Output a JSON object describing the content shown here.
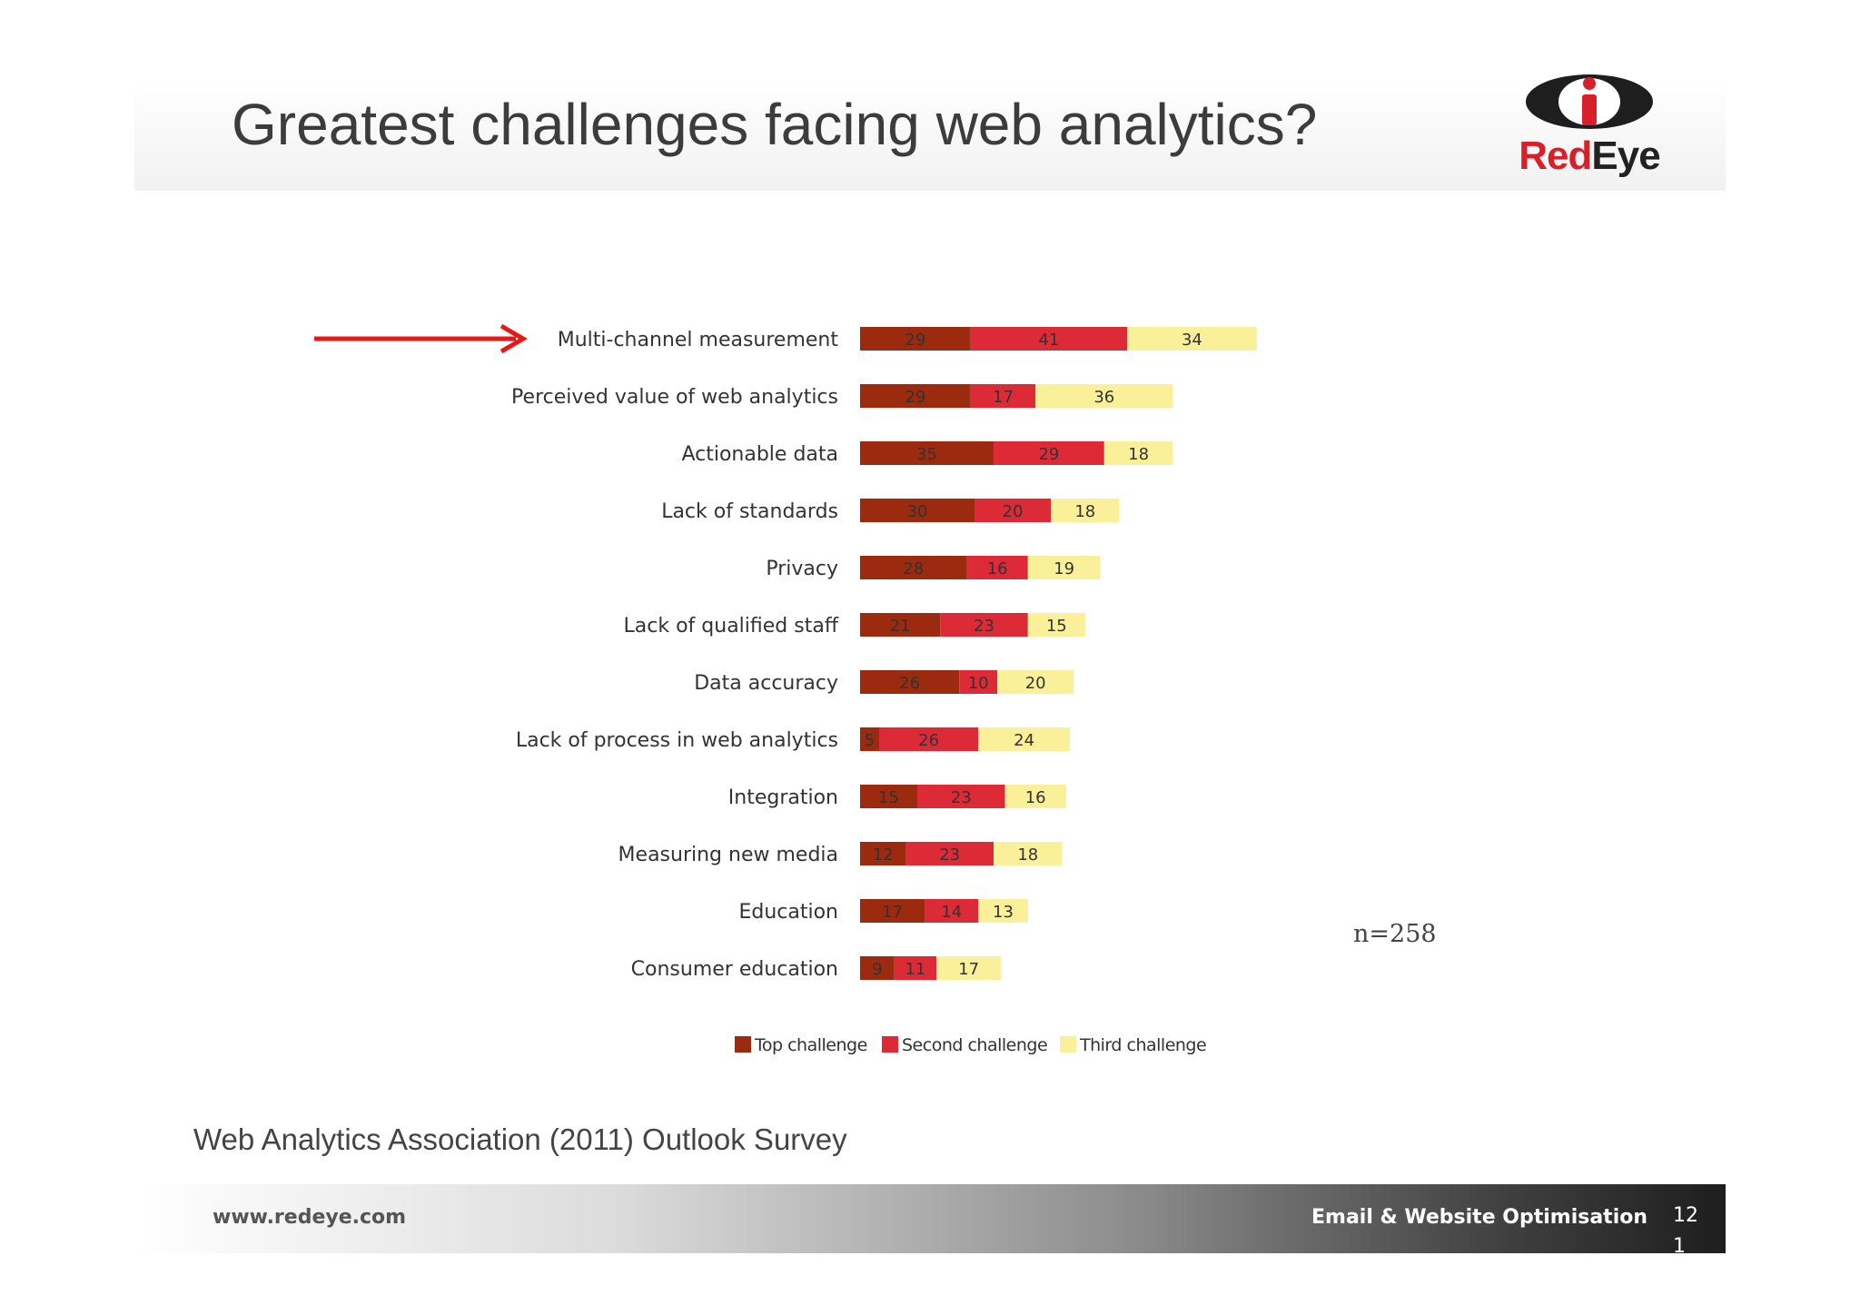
{
  "slide": {
    "title": "Greatest challenges facing web analytics?",
    "logo_text_red": "Red",
    "logo_text_dark": "Eye",
    "source": "Web Analytics Association (2011) Outlook Survey",
    "footer_url": "www.redeye.com",
    "footer_tagline": "Email & Website Optimisation",
    "page_number": "121",
    "sample_size": "n=258"
  },
  "colors": {
    "top": "#9b2a0e",
    "second": "#dc2a36",
    "third": "#fbf09a",
    "arrow": "#e81818",
    "logo_red": "#d8202a"
  },
  "chart_data": {
    "type": "bar",
    "orientation": "horizontal",
    "stacked": true,
    "highlighted_category": "Multi-channel measurement",
    "categories": [
      "Multi-channel measurement",
      "Perceived value of web analytics",
      "Actionable data",
      "Lack of standards",
      "Privacy",
      "Lack of qualified staff",
      "Data accuracy",
      "Lack of process in web analytics",
      "Integration",
      "Measuring new media",
      "Education",
      "Consumer education"
    ],
    "series": [
      {
        "name": "Top challenge",
        "color": "#9b2a0e",
        "values": [
          29,
          29,
          35,
          30,
          28,
          21,
          26,
          5,
          15,
          12,
          17,
          9
        ]
      },
      {
        "name": "Second challenge",
        "color": "#dc2a36",
        "values": [
          41,
          17,
          29,
          20,
          16,
          23,
          10,
          26,
          23,
          23,
          14,
          11
        ]
      },
      {
        "name": "Third challenge",
        "color": "#fbf09a",
        "values": [
          34,
          36,
          18,
          18,
          19,
          15,
          20,
          24,
          16,
          18,
          13,
          17
        ]
      }
    ],
    "legend_position": "bottom",
    "grid": false
  }
}
